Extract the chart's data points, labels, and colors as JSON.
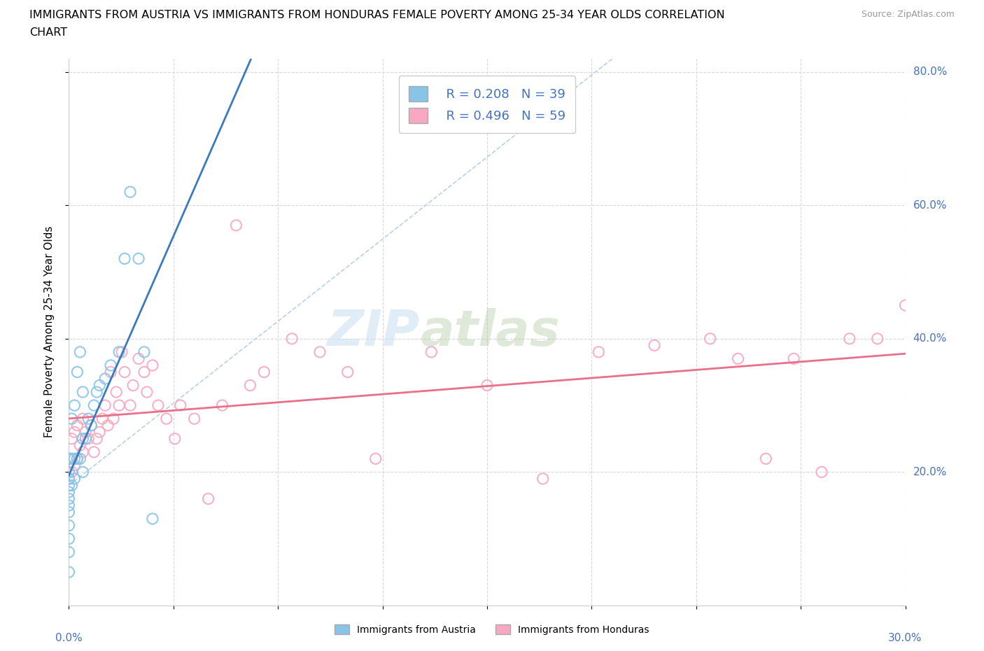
{
  "title_line1": "IMMIGRANTS FROM AUSTRIA VS IMMIGRANTS FROM HONDURAS FEMALE POVERTY AMONG 25-34 YEAR OLDS CORRELATION",
  "title_line2": "CHART",
  "source": "Source: ZipAtlas.com",
  "ylabel_label": "Female Poverty Among 25-34 Year Olds",
  "legend_austria": "Immigrants from Austria",
  "legend_honduras": "Immigrants from Honduras",
  "R_austria": "R = 0.208",
  "N_austria": "N = 39",
  "R_honduras": "R = 0.496",
  "N_honduras": "N = 59",
  "color_austria": "#88c4e8",
  "color_honduras": "#f8a8c0",
  "color_austria_line": "#3a7abf",
  "color_honduras_line": "#e8708a",
  "color_refline": "#b8d0e8",
  "color_axis_labels": "#4472c4",
  "watermark_zip": "ZIP",
  "watermark_atlas": "atlas",
  "xmin": 0.0,
  "xmax": 0.3,
  "ymin": 0.0,
  "ymax": 0.82,
  "yticks": [
    0.2,
    0.4,
    0.6,
    0.8
  ],
  "ylabels": [
    "20.0%",
    "40.0%",
    "60.0%",
    "80.0%"
  ],
  "austria_x": [
    0.0,
    0.0,
    0.0,
    0.0,
    0.0,
    0.0,
    0.0,
    0.0,
    0.0,
    0.0,
    0.0,
    0.0,
    0.001,
    0.001,
    0.001,
    0.002,
    0.002,
    0.002,
    0.003,
    0.003,
    0.004,
    0.004,
    0.005,
    0.005,
    0.005,
    0.006,
    0.007,
    0.008,
    0.009,
    0.01,
    0.011,
    0.013,
    0.015,
    0.018,
    0.02,
    0.022,
    0.025,
    0.027,
    0.03
  ],
  "austria_y": [
    0.05,
    0.08,
    0.1,
    0.12,
    0.14,
    0.15,
    0.16,
    0.17,
    0.18,
    0.19,
    0.2,
    0.22,
    0.18,
    0.22,
    0.28,
    0.19,
    0.22,
    0.3,
    0.22,
    0.35,
    0.22,
    0.38,
    0.2,
    0.25,
    0.32,
    0.25,
    0.28,
    0.27,
    0.3,
    0.32,
    0.33,
    0.34,
    0.36,
    0.38,
    0.52,
    0.62,
    0.52,
    0.38,
    0.13
  ],
  "honduras_x": [
    0.0,
    0.0,
    0.001,
    0.001,
    0.002,
    0.002,
    0.003,
    0.003,
    0.004,
    0.005,
    0.005,
    0.006,
    0.007,
    0.008,
    0.009,
    0.01,
    0.011,
    0.012,
    0.013,
    0.014,
    0.015,
    0.016,
    0.017,
    0.018,
    0.019,
    0.02,
    0.022,
    0.023,
    0.025,
    0.027,
    0.028,
    0.03,
    0.032,
    0.035,
    0.038,
    0.04,
    0.045,
    0.05,
    0.055,
    0.06,
    0.065,
    0.07,
    0.08,
    0.09,
    0.1,
    0.11,
    0.13,
    0.15,
    0.17,
    0.19,
    0.21,
    0.23,
    0.24,
    0.25,
    0.26,
    0.27,
    0.28,
    0.29,
    0.3
  ],
  "honduras_y": [
    0.19,
    0.22,
    0.2,
    0.25,
    0.21,
    0.26,
    0.22,
    0.27,
    0.24,
    0.23,
    0.28,
    0.26,
    0.25,
    0.27,
    0.23,
    0.25,
    0.26,
    0.28,
    0.3,
    0.27,
    0.35,
    0.28,
    0.32,
    0.3,
    0.38,
    0.35,
    0.3,
    0.33,
    0.37,
    0.35,
    0.32,
    0.36,
    0.3,
    0.28,
    0.25,
    0.3,
    0.28,
    0.16,
    0.3,
    0.57,
    0.33,
    0.35,
    0.4,
    0.38,
    0.35,
    0.22,
    0.38,
    0.33,
    0.19,
    0.38,
    0.39,
    0.4,
    0.37,
    0.22,
    0.37,
    0.2,
    0.4,
    0.4,
    0.45
  ]
}
